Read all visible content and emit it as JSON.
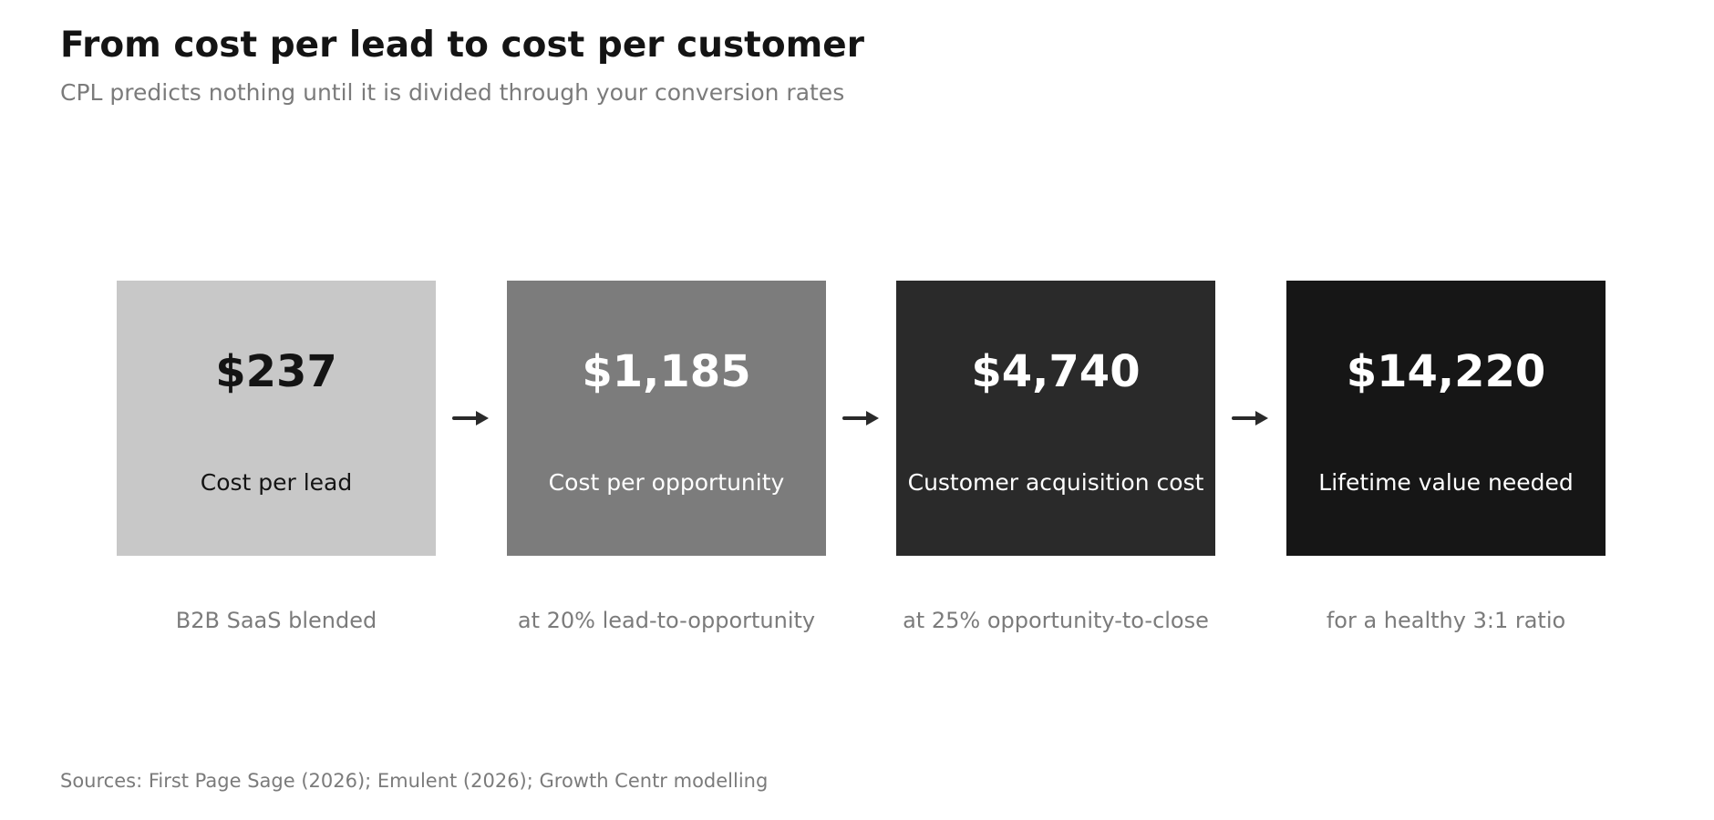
{
  "title": "From cost per lead to cost per customer",
  "subtitle": "CPL predicts nothing until it is divided through your conversion rates",
  "steps": [
    {
      "value": "$237",
      "label": "Cost per lead",
      "caption": "B2B SaaS blended",
      "bg_color": "#c8c8c8",
      "text_color": "#141414"
    },
    {
      "value": "$1,185",
      "label": "Cost per opportunity",
      "caption": "at 20% lead-to-opportunity",
      "bg_color": "#7c7c7c",
      "text_color": "#ffffff"
    },
    {
      "value": "$4,740",
      "label": "Customer acquisition cost",
      "caption": "at 25% opportunity-to-close",
      "bg_color": "#2a2a2a",
      "text_color": "#ffffff"
    },
    {
      "value": "$14,220",
      "label": "Lifetime value needed",
      "caption": "for a healthy 3:1 ratio",
      "bg_color": "#161616",
      "text_color": "#ffffff"
    }
  ],
  "arrow_icon": "arrow-right-icon",
  "arrow_color": "#2a2a2a",
  "source": "Sources: First Page Sage (2026); Emulent (2026); Growth Centr modelling"
}
